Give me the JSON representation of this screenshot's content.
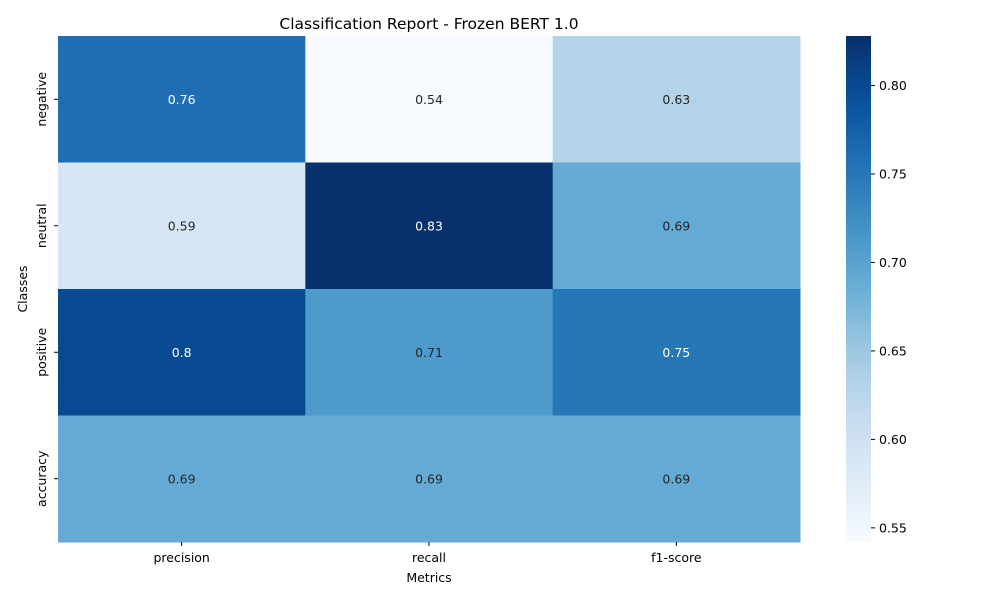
{
  "chart_data": {
    "type": "heatmap",
    "title": "Classification Report - Frozen BERT 1.0",
    "xlabel": "Metrics",
    "ylabel": "Classes",
    "x_categories": [
      "precision",
      "recall",
      "f1-score"
    ],
    "y_categories": [
      "negative",
      "neutral",
      "positive",
      "accuracy"
    ],
    "values": [
      [
        0.76,
        0.54,
        0.63
      ],
      [
        0.59,
        0.83,
        0.69
      ],
      [
        0.8,
        0.71,
        0.75
      ],
      [
        0.69,
        0.69,
        0.69
      ]
    ],
    "colormap": "Blues",
    "vmin": 0.542,
    "vmax": 0.828,
    "colorbar_ticks": [
      0.55,
      0.6,
      0.65,
      0.7,
      0.75,
      0.8
    ],
    "colorbar_tick_labels": [
      "0.55",
      "0.60",
      "0.65",
      "0.70",
      "0.75",
      "0.80"
    ]
  }
}
